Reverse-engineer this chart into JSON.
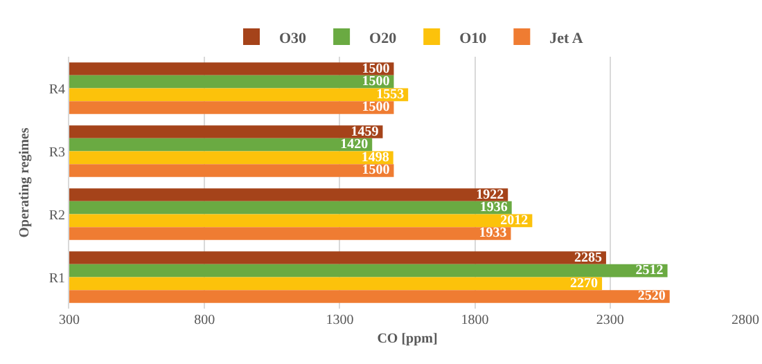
{
  "chart_data": {
    "type": "bar",
    "orientation": "horizontal",
    "xlabel": "CO [ppm]",
    "ylabel": "Operating regimes",
    "categories": [
      "R4",
      "R3",
      "R2",
      "R1"
    ],
    "series": [
      {
        "name": "O30",
        "color": "#a5431a",
        "values": [
          1500,
          1459,
          1922,
          2285
        ]
      },
      {
        "name": "O20",
        "color": "#6aaa42",
        "values": [
          1500,
          1420,
          1936,
          2512
        ]
      },
      {
        "name": "O10",
        "color": "#fcc20b",
        "values": [
          1553,
          1498,
          2012,
          2270
        ]
      },
      {
        "name": "Jet A",
        "color": "#ef7c32",
        "values": [
          1500,
          1500,
          1933,
          2520
        ]
      }
    ],
    "xlim": [
      300,
      2800
    ],
    "xticks": [
      300,
      800,
      1300,
      1800,
      2300,
      2800
    ],
    "grid": "x",
    "legend": "top",
    "data_labels": true
  }
}
